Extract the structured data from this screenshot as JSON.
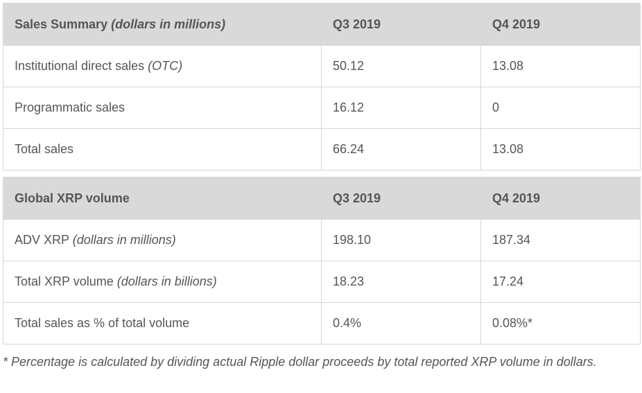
{
  "sales_table": {
    "header": {
      "title": "Sales Summary",
      "title_note": "(dollars in millions)",
      "col2": "Q3 2019",
      "col3": "Q4 2019"
    },
    "rows": [
      {
        "label": "Institutional direct sales",
        "label_note": "(OTC)",
        "q3": "50.12",
        "q4": "13.08"
      },
      {
        "label": "Programmatic sales",
        "label_note": "",
        "q3": "16.12",
        "q4": "0"
      },
      {
        "label": "Total sales",
        "label_note": "",
        "q3": "66.24",
        "q4": "13.08"
      }
    ]
  },
  "volume_table": {
    "header": {
      "title": "Global XRP volume",
      "col2": "Q3 2019",
      "col3": "Q4 2019"
    },
    "rows": [
      {
        "label": "ADV XRP",
        "label_note": "(dollars in millions)",
        "q3": "198.10",
        "q4": "187.34"
      },
      {
        "label": "Total XRP volume",
        "label_note": "(dollars in billions)",
        "q3": "18.23",
        "q4": "17.24"
      },
      {
        "label": "Total sales as % of total volume",
        "label_note": "",
        "q3": "0.4%",
        "q4": "0.08%*"
      }
    ]
  },
  "footnote": "* Percentage is calculated by dividing actual Ripple dollar proceeds by total reported XRP volume in dollars."
}
